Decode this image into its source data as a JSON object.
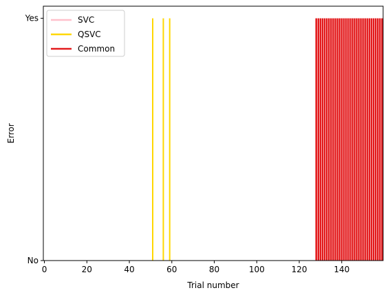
{
  "chart_data": {
    "type": "bar",
    "title": "",
    "xlabel": "Trial number",
    "ylabel": "Error",
    "xlim": [
      -0.5,
      159.5
    ],
    "ylim": [
      0,
      1.05
    ],
    "xticks": [
      0,
      20,
      40,
      60,
      80,
      100,
      120,
      140
    ],
    "yticks": [
      {
        "value": 0,
        "label": "No"
      },
      {
        "value": 1,
        "label": "Yes"
      }
    ],
    "grid": false,
    "legend_position": "upper-left",
    "series": [
      {
        "name": "SVC",
        "color": "#ffc0cb",
        "x": []
      },
      {
        "name": "QSVC",
        "color": "#ffd700",
        "x": [
          51,
          56,
          59
        ]
      },
      {
        "name": "Common",
        "color": "#e31a1c",
        "x": [
          128,
          129,
          130,
          131,
          132,
          133,
          134,
          135,
          136,
          137,
          138,
          139,
          140,
          141,
          142,
          143,
          144,
          145,
          146,
          147,
          148,
          149,
          150,
          151,
          152,
          153,
          154,
          155,
          156,
          157,
          158,
          159
        ]
      }
    ]
  }
}
